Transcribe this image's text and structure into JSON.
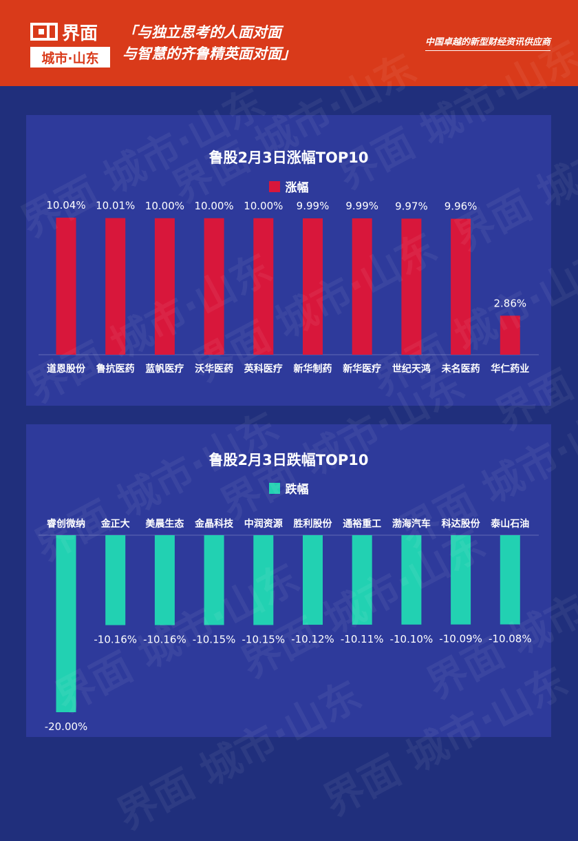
{
  "header": {
    "logo_text": "界面",
    "logo_sub": "城市·山东",
    "slogan_line1": "「与独立思考的人面对面",
    "slogan_line2": "与智慧的齐鲁精英面对面」",
    "tagline": "中国卓越的新型财经资讯供应商"
  },
  "watermark": "界面 城市·山东",
  "colors": {
    "header": "#d93a1a",
    "background": "#202f7c",
    "panel": "#2e3a9b",
    "gain": "#d8173b",
    "loss": "#22d1b2"
  },
  "chart_data": [
    {
      "type": "bar",
      "title": "鲁股2月3日涨幅TOP10",
      "legend": "涨幅",
      "categories": [
        "道恩股份",
        "鲁抗医药",
        "蓝帆医疗",
        "沃华医药",
        "英科医疗",
        "新华制药",
        "新华医疗",
        "世纪天鸿",
        "未名医药",
        "华仁药业"
      ],
      "values": [
        10.04,
        10.01,
        10.0,
        10.0,
        10.0,
        9.99,
        9.99,
        9.97,
        9.96,
        2.86
      ],
      "labels": [
        "10.04%",
        "10.01%",
        "10.00%",
        "10.00%",
        "10.00%",
        "9.99%",
        "9.99%",
        "9.97%",
        "9.96%",
        "2.86%"
      ],
      "ylim": [
        0,
        10.04
      ]
    },
    {
      "type": "bar",
      "title": "鲁股2月3日跌幅TOP10",
      "legend": "跌幅",
      "categories": [
        "睿创微纳",
        "金正大",
        "美晨生态",
        "金晶科技",
        "中润资源",
        "胜利股份",
        "通裕重工",
        "渤海汽车",
        "科达股份",
        "泰山石油"
      ],
      "values": [
        -20.0,
        -10.16,
        -10.16,
        -10.15,
        -10.15,
        -10.12,
        -10.11,
        -10.1,
        -10.09,
        -10.08
      ],
      "labels": [
        "-20.00%",
        "-10.16%",
        "-10.16%",
        "-10.15%",
        "-10.15%",
        "-10.12%",
        "-10.11%",
        "-10.10%",
        "-10.09%",
        "-10.08%"
      ],
      "ylim": [
        -20.0,
        0
      ]
    }
  ]
}
